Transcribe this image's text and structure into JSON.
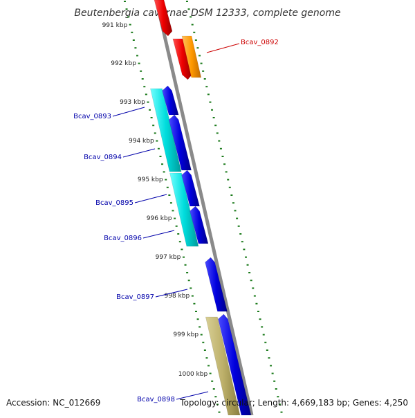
{
  "title": "Beutenbergia cavernae DSM 12333, complete genome",
  "footer": {
    "accession": "Accession: NC_012669",
    "topology": "Topology: circular; Length: 4,669,183 bp; Genes: 4,250"
  },
  "kbp_ticks": [
    "991 kbp",
    "992 kbp",
    "993 kbp",
    "994 kbp",
    "995 kbp",
    "996 kbp",
    "997 kbp",
    "998 kbp",
    "999 kbp",
    "1000 kbp"
  ],
  "gene_labels": [
    "Bcav_0892",
    "Bcav_0893",
    "Bcav_0894",
    "Bcav_0895",
    "Bcav_0896",
    "Bcav_0897",
    "Bcav_0898"
  ],
  "colors": {
    "backbone": "#808080",
    "tick": "#1a7a1a",
    "red": "#ee0000",
    "orange": "#ff9900",
    "blue": "#0000dd",
    "cyan": "#00dddd",
    "khaki": "#bdb06a",
    "label_red": "#cc0000",
    "label_blue": "#0000aa"
  }
}
